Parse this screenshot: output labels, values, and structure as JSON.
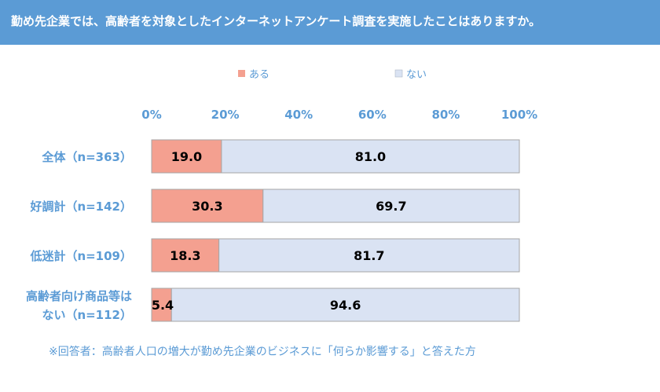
{
  "header": {
    "question": "勤め先企業では、高齢者を対象としたインターネットアンケート調査を実施したことはありますか。"
  },
  "colors": {
    "banner": "#5b9bd5",
    "aru": "#f4a090",
    "nai": "#dae3f3",
    "label_text": "#5b9bd5"
  },
  "chart_data": {
    "type": "bar",
    "orientation": "horizontal",
    "stacked": true,
    "percent": true,
    "xlim": [
      0,
      100
    ],
    "x_ticks": [
      "0%",
      "20%",
      "40%",
      "60%",
      "80%",
      "100%"
    ],
    "legend_position": "top",
    "categories": [
      [
        "全体（n=363）"
      ],
      [
        "好調計（n=142）"
      ],
      [
        "低迷計（n=109）"
      ],
      [
        "高齢者向け商品等は",
        "ない（n=112）"
      ]
    ],
    "series": [
      {
        "name": "ある",
        "values": [
          19.0,
          30.3,
          18.3,
          5.4
        ],
        "labels": [
          "19.0",
          "30.3",
          "18.3",
          "5.4"
        ]
      },
      {
        "name": "ない",
        "values": [
          81.0,
          69.7,
          81.7,
          94.6
        ],
        "labels": [
          "81.0",
          "69.7",
          "81.7",
          "94.6"
        ]
      }
    ]
  },
  "footnote": "※回答者：高齢者人口の増大が勤め先企業のビジネスに「何らか影響する」と答えた方"
}
